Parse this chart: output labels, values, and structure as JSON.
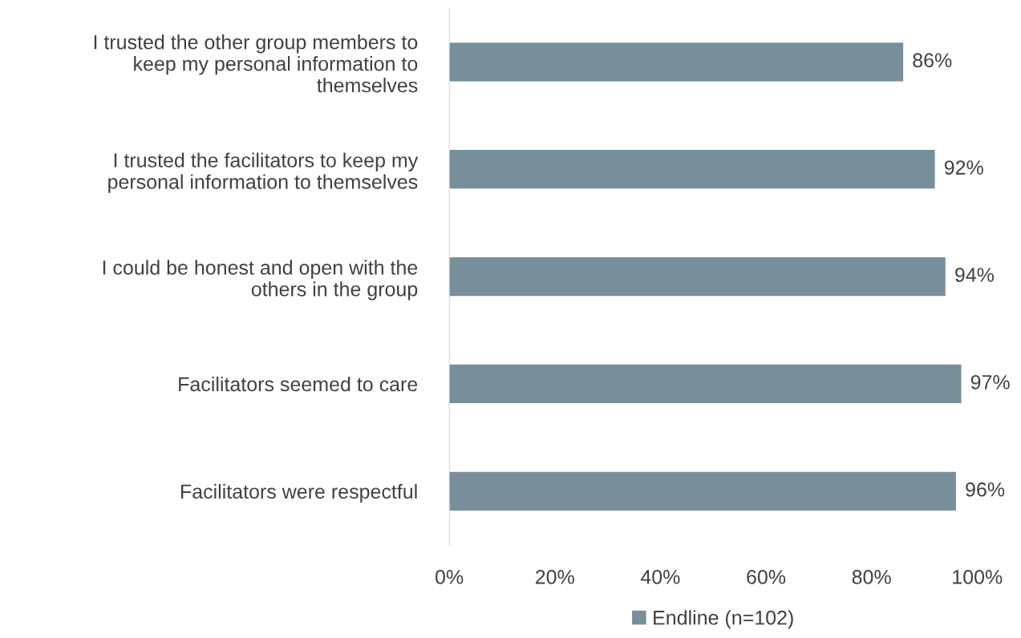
{
  "chart_data": {
    "type": "bar",
    "orientation": "horizontal",
    "categories": [
      "I trusted the other group members to\nkeep my personal information to\nthemselves",
      "I trusted the facilitators to keep my\npersonal information to themselves",
      "I could be honest and open with the\nothers in the group",
      "Facilitators seemed to care",
      "Facilitators were respectful"
    ],
    "series": [
      {
        "name": "Endline (n=102)",
        "color": "#778f9b",
        "values": [
          86,
          92,
          94,
          97,
          96
        ],
        "value_labels": [
          "86%",
          "92%",
          "94%",
          "97%",
          "96%"
        ]
      }
    ],
    "xlim": [
      0,
      100
    ],
    "xticks": [
      {
        "value": 0,
        "label": "0%"
      },
      {
        "value": 20,
        "label": "20%"
      },
      {
        "value": 40,
        "label": "40%"
      },
      {
        "value": 60,
        "label": "60%"
      },
      {
        "value": 80,
        "label": "80%"
      },
      {
        "value": 100,
        "label": "100%"
      }
    ],
    "grid": false,
    "legend": "bottom"
  }
}
